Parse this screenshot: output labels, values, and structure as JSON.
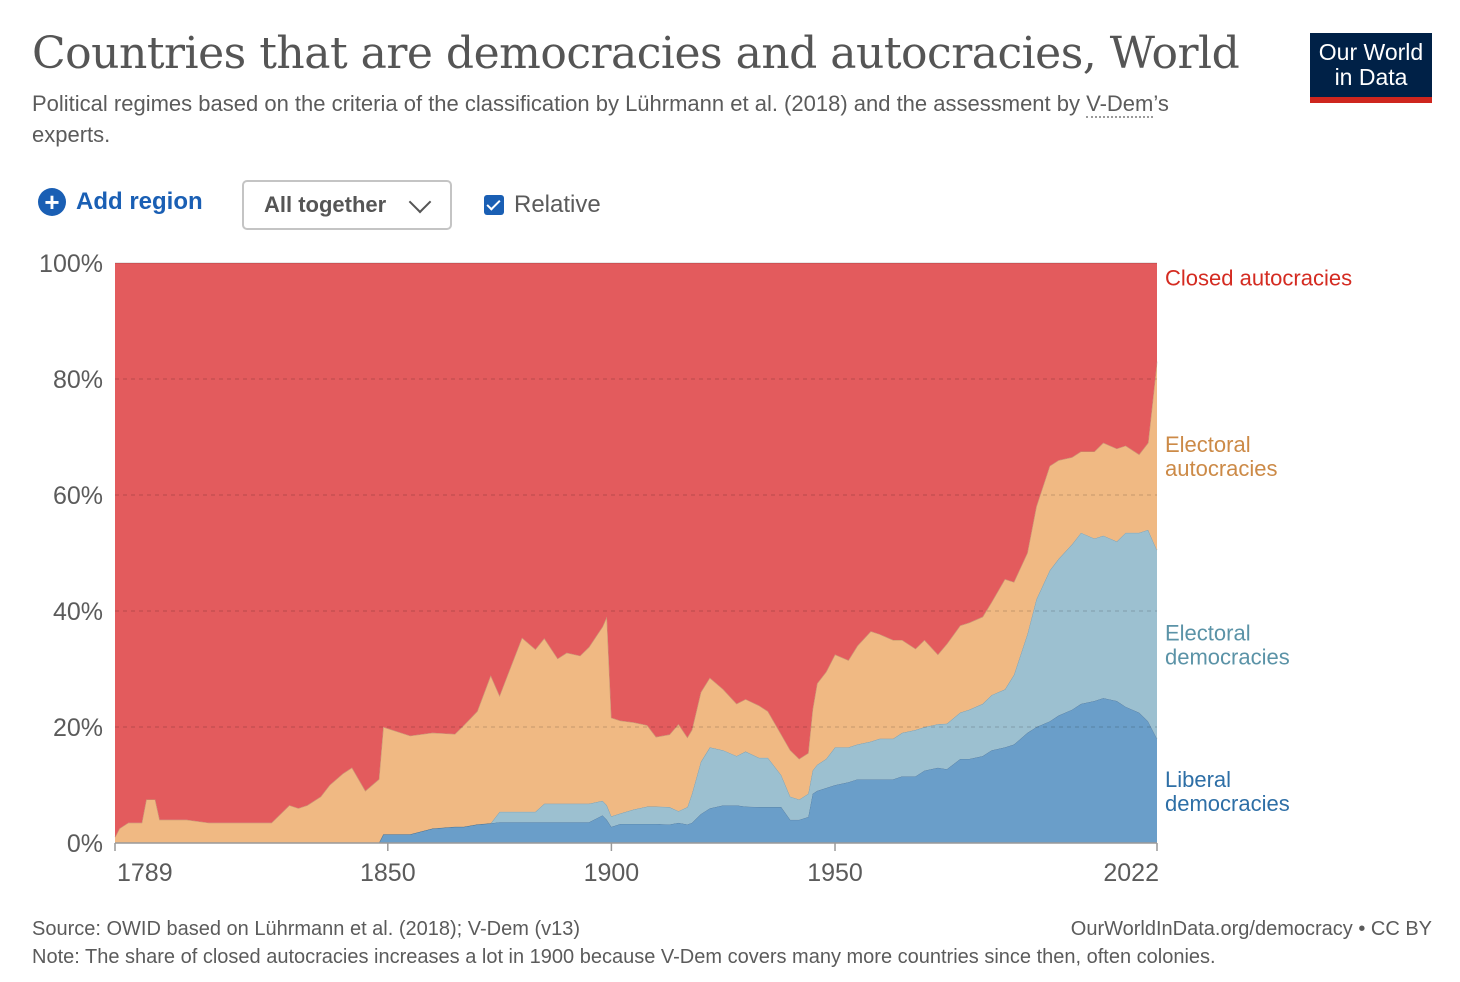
{
  "header": {
    "title": "Countries that are democracies and autocracies, World",
    "subtitle_pre": "Political regimes based on the criteria of the classification by Lührmann et al. (2018) and the assessment by ",
    "subtitle_link": "V-Dem",
    "subtitle_post": "’s experts."
  },
  "logo": {
    "line1": "Our World",
    "line2": "in Data"
  },
  "controls": {
    "add_region": "Add region",
    "mode": "All together",
    "relative_label": "Relative",
    "relative_checked": true
  },
  "footer": {
    "source": "Source: OWID based on Lührmann et al. (2018); V-Dem (v13)",
    "url": "OurWorldInData.org/democracy • CC BY",
    "note": "Note: The share of closed autocracies increases a lot in 1900 because V-Dem covers many more countries since then, often colonies."
  },
  "chart_data": {
    "type": "area",
    "stacked": true,
    "relative": true,
    "xlim": [
      1789,
      2022
    ],
    "ylim": [
      0,
      100
    ],
    "y_ticks": [
      "0%",
      "20%",
      "40%",
      "60%",
      "80%",
      "100%"
    ],
    "x_ticks": [
      "1789",
      "1850",
      "1900",
      "1950",
      "2022"
    ],
    "x_tick_values": [
      1789,
      1850,
      1900,
      1950,
      2022
    ],
    "grid": true,
    "legend_placement": "right",
    "x": [
      1789,
      1790,
      1792,
      1795,
      1796,
      1798,
      1799,
      1805,
      1810,
      1813,
      1815,
      1817,
      1820,
      1824,
      1826,
      1828,
      1830,
      1832,
      1835,
      1837,
      1840,
      1842,
      1845,
      1848,
      1849,
      1855,
      1860,
      1865,
      1867,
      1870,
      1873,
      1875,
      1878,
      1880,
      1883,
      1885,
      1888,
      1890,
      1893,
      1895,
      1898,
      1899,
      1900,
      1902,
      1905,
      1908,
      1910,
      1913,
      1915,
      1917,
      1918,
      1920,
      1922,
      1925,
      1928,
      1930,
      1933,
      1935,
      1938,
      1940,
      1942,
      1944,
      1945,
      1946,
      1948,
      1950,
      1953,
      1955,
      1958,
      1960,
      1963,
      1965,
      1968,
      1970,
      1973,
      1975,
      1978,
      1980,
      1983,
      1985,
      1988,
      1990,
      1993,
      1995,
      1998,
      2000,
      2003,
      2005,
      2008,
      2010,
      2013,
      2015,
      2018,
      2020,
      2022
    ],
    "series": [
      {
        "name": "Liberal democracies",
        "color": "#6a9ec9",
        "label_color": "#2e6fa6",
        "values": [
          0,
          0,
          0,
          0,
          0,
          0,
          0,
          0,
          0,
          0,
          0,
          0,
          0,
          0,
          0,
          0,
          0,
          0,
          0,
          0,
          0,
          0,
          0,
          0,
          1.5,
          1.5,
          2.5,
          2.8,
          2.8,
          3.2,
          3.4,
          3.6,
          3.6,
          3.6,
          3.6,
          3.6,
          3.6,
          3.6,
          3.6,
          3.6,
          4.8,
          4,
          2.8,
          3.3,
          3.3,
          3.3,
          3.3,
          3.2,
          3.5,
          3.2,
          3.5,
          5,
          6,
          6.5,
          6.5,
          6.3,
          6.2,
          6.2,
          6.2,
          4,
          4,
          4.5,
          8.5,
          9,
          9.5,
          10,
          10.5,
          11,
          11,
          11,
          11,
          11.5,
          11.5,
          12.5,
          13,
          13,
          14.5,
          14.5,
          15,
          16,
          16.5,
          17,
          19,
          20,
          21,
          22,
          23,
          24,
          24.5,
          25,
          24.5,
          23.5,
          22.5,
          21,
          18
        ]
      },
      {
        "name": "Electoral democracies",
        "color": "#9cc0d0",
        "label_color": "#5b93a7",
        "values": [
          0,
          0,
          0,
          0,
          0,
          0,
          0,
          0,
          0,
          0,
          0,
          0,
          0,
          0,
          0,
          0,
          0,
          0,
          0,
          0,
          0,
          0,
          0,
          0,
          0,
          0,
          0,
          0,
          0,
          0,
          0,
          1.8,
          1.8,
          1.8,
          1.8,
          3.2,
          3.2,
          3.2,
          3.2,
          3.2,
          2.5,
          2.5,
          1.8,
          1.8,
          2.5,
          3,
          3,
          3,
          2,
          3,
          5,
          9,
          10.5,
          9.5,
          8.5,
          9.5,
          8.5,
          8.5,
          5.5,
          4,
          3.5,
          4,
          4,
          4.5,
          5,
          6.5,
          6,
          6,
          6.5,
          7,
          7,
          7.5,
          8,
          7.5,
          7.5,
          8,
          8,
          8.5,
          9,
          9.5,
          10,
          12,
          17,
          22,
          26,
          27,
          28.5,
          29.5,
          28,
          28,
          27.5,
          30,
          31,
          33,
          32.5
        ]
      },
      {
        "name": "Electoral autocracies",
        "color": "#f0b983",
        "label_color": "#cc8a47",
        "values": [
          1,
          2.5,
          3.5,
          3.5,
          7.5,
          7.5,
          4,
          4,
          3.5,
          3.5,
          3.5,
          3.5,
          3.5,
          3.5,
          5,
          6.5,
          6,
          6.5,
          8,
          10,
          12,
          13,
          9,
          11,
          18.5,
          17,
          16.5,
          16,
          17.5,
          19.5,
          25.5,
          20,
          26,
          30,
          28,
          28.5,
          25,
          26,
          25.5,
          27,
          30,
          32.5,
          17,
          16,
          15,
          14,
          12,
          12.5,
          15,
          12,
          11,
          12,
          12,
          10.5,
          9,
          9,
          9,
          8,
          7,
          8,
          7,
          7,
          10.5,
          14,
          15,
          16,
          15,
          17,
          19,
          18,
          17,
          16,
          14,
          15,
          12,
          14,
          15,
          15,
          15,
          16,
          19,
          16,
          14,
          16,
          18,
          17,
          15,
          14,
          15,
          16,
          16,
          15,
          13.5,
          15,
          32.5
        ]
      },
      {
        "name": "Closed autocracies",
        "color": "#e35b5d",
        "label_color": "#d42b21",
        "values": [
          99,
          97.5,
          96.5,
          96.5,
          92.5,
          92.5,
          96,
          96,
          96.5,
          96.5,
          96.5,
          96.5,
          96.5,
          96.5,
          95,
          93.5,
          94,
          93.5,
          92,
          90,
          88,
          87,
          91,
          89,
          80,
          81.5,
          81,
          81.2,
          79.7,
          77.3,
          71.1,
          74.6,
          68.6,
          64.6,
          66.6,
          64.7,
          68.2,
          67.2,
          67.7,
          66.2,
          62.7,
          61,
          78.4,
          78.9,
          79.2,
          79.7,
          81.7,
          81.3,
          79.5,
          81.8,
          80.5,
          74,
          71.5,
          73.5,
          76,
          75.2,
          76.3,
          77.3,
          81.3,
          84,
          85.5,
          84.5,
          77,
          72.5,
          70.5,
          67.5,
          68.5,
          66,
          63.5,
          64,
          65,
          65,
          66.5,
          65,
          67.5,
          67,
          62.5,
          62,
          61,
          58.5,
          54.5,
          55,
          50,
          42,
          35,
          34,
          33.5,
          32.5,
          32.5,
          31,
          32,
          31.5,
          33,
          31,
          17
        ]
      }
    ],
    "legend_labels": [
      {
        "series": "Closed autocracies",
        "lines": [
          "Closed autocracies"
        ]
      },
      {
        "series": "Electoral autocracies",
        "lines": [
          "Electoral",
          "autocracies"
        ]
      },
      {
        "series": "Electoral democracies",
        "lines": [
          "Electoral",
          "democracies"
        ]
      },
      {
        "series": "Liberal democracies",
        "lines": [
          "Liberal",
          "democracies"
        ]
      }
    ]
  }
}
